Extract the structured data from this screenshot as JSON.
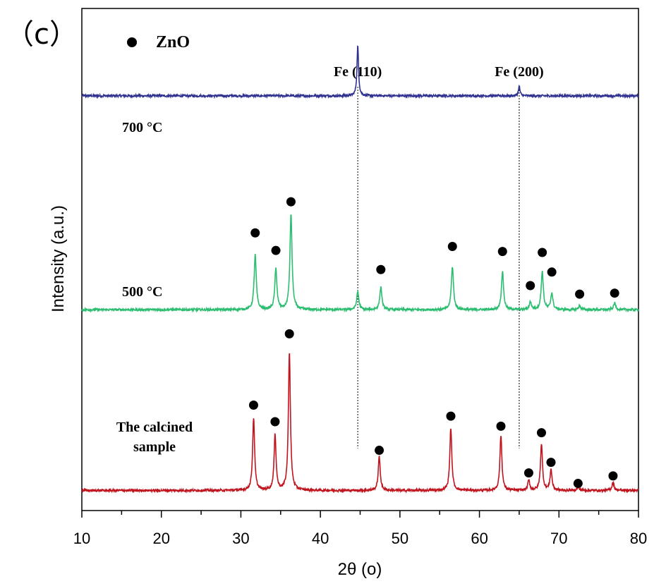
{
  "panel_label": "（c）",
  "legend": {
    "marker": "●",
    "label": "ZnO"
  },
  "chart_data": {
    "type": "line",
    "xlabel": "2θ (ο)",
    "ylabel": "Intensity (a.u.)",
    "xlim": [
      10,
      80
    ],
    "xticks": [
      10,
      20,
      30,
      40,
      50,
      60,
      70,
      80
    ],
    "ylim": [
      0,
      100
    ],
    "reference_lines": [
      {
        "label": "Fe (110)",
        "x": 44.7
      },
      {
        "label": "Fe (200)",
        "x": 65.0
      }
    ],
    "series": [
      {
        "name": "700 °C",
        "color": "#2e3190",
        "baseline": 82.6,
        "peaks": [
          {
            "x": 44.7,
            "height": 10.0,
            "width": 0.12
          },
          {
            "x": 65.0,
            "height": 1.9,
            "width": 0.12
          }
        ],
        "zno_markers": []
      },
      {
        "name": "500 °C",
        "color": "#2dbd70",
        "baseline": 40.0,
        "peaks": [
          {
            "x": 31.8,
            "height": 10.9,
            "width": 0.16
          },
          {
            "x": 34.4,
            "height": 8.1,
            "width": 0.16
          },
          {
            "x": 36.3,
            "height": 19.0,
            "width": 0.16
          },
          {
            "x": 44.7,
            "height": 3.6,
            "width": 0.16
          },
          {
            "x": 47.6,
            "height": 4.5,
            "width": 0.16
          },
          {
            "x": 56.6,
            "height": 8.6,
            "width": 0.16
          },
          {
            "x": 62.9,
            "height": 7.6,
            "width": 0.16
          },
          {
            "x": 66.4,
            "height": 1.5,
            "width": 0.16
          },
          {
            "x": 67.9,
            "height": 7.6,
            "width": 0.16
          },
          {
            "x": 69.1,
            "height": 3.3,
            "width": 0.16
          },
          {
            "x": 72.6,
            "height": 0.8,
            "width": 0.16
          },
          {
            "x": 77.0,
            "height": 1.3,
            "width": 0.16
          }
        ],
        "zno_markers": [
          {
            "x": 31.8,
            "y": 55.3
          },
          {
            "x": 34.4,
            "y": 51.8
          },
          {
            "x": 36.3,
            "y": 61.5
          },
          {
            "x": 47.6,
            "y": 48.0
          },
          {
            "x": 56.6,
            "y": 52.6
          },
          {
            "x": 62.9,
            "y": 51.6
          },
          {
            "x": 66.4,
            "y": 44.8
          },
          {
            "x": 67.9,
            "y": 51.4
          },
          {
            "x": 69.1,
            "y": 47.5
          },
          {
            "x": 72.6,
            "y": 43.1
          },
          {
            "x": 77.0,
            "y": 43.3
          }
        ]
      },
      {
        "name": "The calcined sample",
        "color": "#c0141e",
        "baseline": 4.0,
        "peaks": [
          {
            "x": 31.6,
            "height": 14.5,
            "width": 0.15
          },
          {
            "x": 34.3,
            "height": 11.1,
            "width": 0.15
          },
          {
            "x": 36.1,
            "height": 27.6,
            "width": 0.15
          },
          {
            "x": 47.4,
            "height": 6.7,
            "width": 0.15
          },
          {
            "x": 56.4,
            "height": 12.5,
            "width": 0.15
          },
          {
            "x": 62.7,
            "height": 11.0,
            "width": 0.15
          },
          {
            "x": 66.2,
            "height": 2.0,
            "width": 0.15
          },
          {
            "x": 67.8,
            "height": 9.3,
            "width": 0.15
          },
          {
            "x": 69.0,
            "height": 4.1,
            "width": 0.15
          },
          {
            "x": 72.4,
            "height": 0.7,
            "width": 0.15
          },
          {
            "x": 76.8,
            "height": 1.6,
            "width": 0.15
          }
        ],
        "zno_markers": [
          {
            "x": 31.6,
            "y": 21.0
          },
          {
            "x": 34.3,
            "y": 17.7
          },
          {
            "x": 36.1,
            "y": 35.2
          },
          {
            "x": 47.4,
            "y": 12.0
          },
          {
            "x": 56.4,
            "y": 18.8
          },
          {
            "x": 62.7,
            "y": 16.8
          },
          {
            "x": 66.2,
            "y": 7.5
          },
          {
            "x": 67.8,
            "y": 15.5
          },
          {
            "x": 69.0,
            "y": 9.6
          },
          {
            "x": 72.4,
            "y": 5.4
          },
          {
            "x": 76.8,
            "y": 6.9
          }
        ]
      }
    ]
  }
}
